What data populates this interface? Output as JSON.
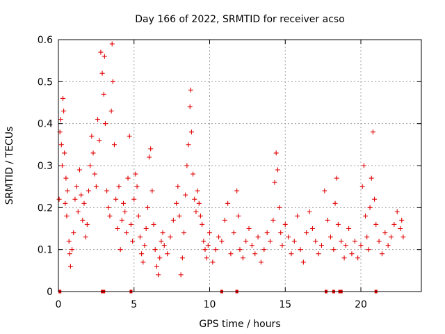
{
  "chart_data": {
    "type": "scatter",
    "title": "Day 166 of 2022, SRMTID for receiver acso",
    "xlabel": "GPS time / hours",
    "ylabel": "SRMTID / TECUs",
    "xlim": [
      0,
      24
    ],
    "ylim": [
      0,
      0.6
    ],
    "xticks": [
      0,
      5,
      10,
      15,
      20
    ],
    "xtick_labels": [
      "0",
      "5",
      "10",
      "15",
      "20"
    ],
    "yticks": [
      0,
      0.1,
      0.2,
      0.3,
      0.4,
      0.5,
      0.6
    ],
    "ytick_labels": [
      "0",
      "0.1",
      "0.2",
      "0.3",
      "0.4",
      "0.5",
      "0.6"
    ],
    "grid": true,
    "marker": "+",
    "color": "#e00000",
    "series": [
      {
        "name": "SRMTID",
        "points": [
          [
            0.05,
            0.22
          ],
          [
            0.1,
            0.38
          ],
          [
            0.15,
            0.41
          ],
          [
            0.2,
            0.35
          ],
          [
            0.25,
            0.3
          ],
          [
            0.3,
            0.46
          ],
          [
            0.35,
            0.43
          ],
          [
            0.4,
            0.33
          ],
          [
            0.45,
            0.21
          ],
          [
            0.5,
            0.27
          ],
          [
            0.55,
            0.18
          ],
          [
            0.6,
            0.24
          ],
          [
            0.7,
            0.12
          ],
          [
            0.75,
            0.09
          ],
          [
            0.8,
            0.06
          ],
          [
            0.9,
            0.1
          ],
          [
            1.0,
            0.14
          ],
          [
            1.1,
            0.22
          ],
          [
            1.2,
            0.25
          ],
          [
            1.3,
            0.19
          ],
          [
            1.4,
            0.29
          ],
          [
            1.5,
            0.23
          ],
          [
            1.6,
            0.17
          ],
          [
            1.7,
            0.21
          ],
          [
            1.8,
            0.13
          ],
          [
            1.9,
            0.16
          ],
          [
            2.0,
            0.24
          ],
          [
            2.1,
            0.3
          ],
          [
            2.2,
            0.37
          ],
          [
            2.3,
            0.33
          ],
          [
            2.4,
            0.28
          ],
          [
            2.5,
            0.25
          ],
          [
            2.6,
            0.41
          ],
          [
            2.7,
            0.36
          ],
          [
            2.8,
            0.57
          ],
          [
            2.9,
            0.52
          ],
          [
            3.0,
            0.47
          ],
          [
            3.05,
            0.56
          ],
          [
            3.1,
            0.4
          ],
          [
            3.2,
            0.24
          ],
          [
            3.3,
            0.2
          ],
          [
            3.4,
            0.18
          ],
          [
            3.5,
            0.43
          ],
          [
            3.55,
            0.59
          ],
          [
            3.6,
            0.5
          ],
          [
            3.7,
            0.35
          ],
          [
            3.8,
            0.22
          ],
          [
            3.9,
            0.15
          ],
          [
            4.0,
            0.25
          ],
          [
            4.1,
            0.1
          ],
          [
            4.2,
            0.17
          ],
          [
            4.3,
            0.21
          ],
          [
            4.4,
            0.19
          ],
          [
            4.5,
            0.14
          ],
          [
            4.6,
            0.27
          ],
          [
            4.7,
            0.37
          ],
          [
            4.8,
            0.16
          ],
          [
            4.9,
            0.12
          ],
          [
            5.0,
            0.22
          ],
          [
            5.1,
            0.28
          ],
          [
            5.2,
            0.25
          ],
          [
            5.3,
            0.18
          ],
          [
            5.4,
            0.13
          ],
          [
            5.5,
            0.09
          ],
          [
            5.6,
            0.07
          ],
          [
            5.7,
            0.11
          ],
          [
            5.8,
            0.15
          ],
          [
            5.9,
            0.2
          ],
          [
            6.0,
            0.32
          ],
          [
            6.1,
            0.34
          ],
          [
            6.2,
            0.24
          ],
          [
            6.3,
            0.16
          ],
          [
            6.4,
            0.1
          ],
          [
            6.5,
            0.06
          ],
          [
            6.6,
            0.04
          ],
          [
            6.7,
            0.08
          ],
          [
            6.8,
            0.12
          ],
          [
            6.9,
            0.14
          ],
          [
            7.0,
            0.11
          ],
          [
            7.2,
            0.09
          ],
          [
            7.4,
            0.13
          ],
          [
            7.6,
            0.17
          ],
          [
            7.8,
            0.21
          ],
          [
            7.9,
            0.25
          ],
          [
            8.0,
            0.18
          ],
          [
            8.1,
            0.04
          ],
          [
            8.2,
            0.08
          ],
          [
            8.3,
            0.14
          ],
          [
            8.4,
            0.23
          ],
          [
            8.5,
            0.3
          ],
          [
            8.6,
            0.35
          ],
          [
            8.7,
            0.44
          ],
          [
            8.75,
            0.48
          ],
          [
            8.8,
            0.38
          ],
          [
            8.9,
            0.28
          ],
          [
            9.0,
            0.22
          ],
          [
            9.1,
            0.19
          ],
          [
            9.2,
            0.24
          ],
          [
            9.3,
            0.21
          ],
          [
            9.4,
            0.18
          ],
          [
            9.5,
            0.16
          ],
          [
            9.6,
            0.12
          ],
          [
            9.7,
            0.1
          ],
          [
            9.8,
            0.08
          ],
          [
            9.9,
            0.11
          ],
          [
            10.0,
            0.14
          ],
          [
            10.2,
            0.07
          ],
          [
            10.4,
            0.1
          ],
          [
            10.6,
            0.13
          ],
          [
            10.8,
            0.12
          ],
          [
            11.0,
            0.17
          ],
          [
            11.2,
            0.21
          ],
          [
            11.4,
            0.09
          ],
          [
            11.6,
            0.14
          ],
          [
            11.8,
            0.24
          ],
          [
            11.9,
            0.18
          ],
          [
            12.0,
            0.1
          ],
          [
            12.2,
            0.08
          ],
          [
            12.4,
            0.12
          ],
          [
            12.6,
            0.15
          ],
          [
            12.8,
            0.11
          ],
          [
            13.0,
            0.09
          ],
          [
            13.2,
            0.13
          ],
          [
            13.4,
            0.07
          ],
          [
            13.6,
            0.1
          ],
          [
            13.8,
            0.14
          ],
          [
            14.0,
            0.12
          ],
          [
            14.2,
            0.17
          ],
          [
            14.3,
            0.26
          ],
          [
            14.4,
            0.33
          ],
          [
            14.5,
            0.29
          ],
          [
            14.6,
            0.2
          ],
          [
            14.7,
            0.14
          ],
          [
            14.8,
            0.11
          ],
          [
            15.0,
            0.16
          ],
          [
            15.2,
            0.13
          ],
          [
            15.4,
            0.09
          ],
          [
            15.6,
            0.12
          ],
          [
            15.8,
            0.18
          ],
          [
            16.0,
            0.1
          ],
          [
            16.2,
            0.07
          ],
          [
            16.4,
            0.14
          ],
          [
            16.6,
            0.19
          ],
          [
            16.8,
            0.15
          ],
          [
            17.0,
            0.12
          ],
          [
            17.2,
            0.09
          ],
          [
            17.4,
            0.11
          ],
          [
            17.6,
            0.24
          ],
          [
            17.8,
            0.17
          ],
          [
            18.0,
            0.13
          ],
          [
            18.2,
            0.1
          ],
          [
            18.3,
            0.21
          ],
          [
            18.4,
            0.27
          ],
          [
            18.5,
            0.16
          ],
          [
            18.7,
            0.12
          ],
          [
            18.9,
            0.08
          ],
          [
            19.0,
            0.11
          ],
          [
            19.2,
            0.15
          ],
          [
            19.4,
            0.09
          ],
          [
            19.6,
            0.12
          ],
          [
            19.8,
            0.08
          ],
          [
            20.0,
            0.11
          ],
          [
            20.1,
            0.25
          ],
          [
            20.2,
            0.3
          ],
          [
            20.3,
            0.18
          ],
          [
            20.4,
            0.13
          ],
          [
            20.5,
            0.1
          ],
          [
            20.6,
            0.2
          ],
          [
            20.7,
            0.27
          ],
          [
            20.8,
            0.38
          ],
          [
            20.9,
            0.22
          ],
          [
            21.0,
            0.16
          ],
          [
            21.2,
            0.12
          ],
          [
            21.4,
            0.09
          ],
          [
            21.6,
            0.14
          ],
          [
            21.8,
            0.11
          ],
          [
            22.0,
            0.13
          ],
          [
            22.2,
            0.16
          ],
          [
            22.4,
            0.19
          ],
          [
            22.6,
            0.15
          ],
          [
            22.7,
            0.17
          ],
          [
            22.8,
            0.13
          ]
        ]
      }
    ],
    "zero_markers_x": [
      0.1,
      2.9,
      3.0,
      4.8,
      10.8,
      11.8,
      17.7,
      18.2,
      18.6,
      18.7,
      21.0
    ]
  }
}
